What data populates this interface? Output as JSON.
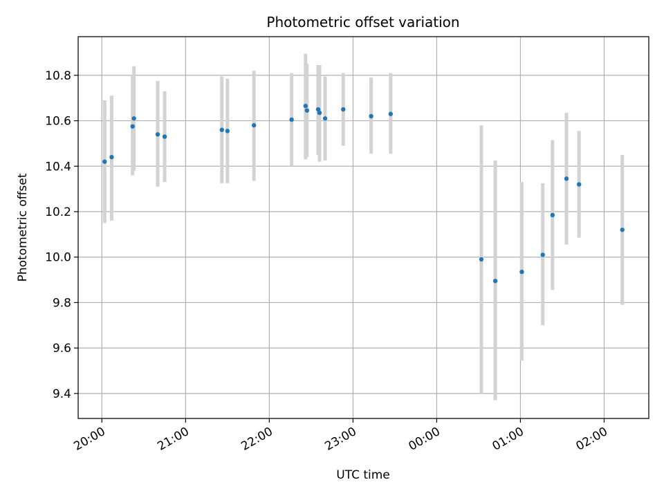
{
  "chart_data": {
    "type": "scatter",
    "title": "Photometric offset variation",
    "xlabel": "UTC time",
    "ylabel": "Photometric offset",
    "x_tick_labels": [
      "20:00",
      "21:00",
      "22:00",
      "23:00",
      "00:00",
      "01:00",
      "02:00"
    ],
    "y_tick_labels": [
      "9.4",
      "9.6",
      "9.8",
      "10.0",
      "10.2",
      "10.4",
      "10.6",
      "10.8"
    ],
    "xlim": [
      "19:43",
      "02:32"
    ],
    "ylim": [
      9.29,
      10.97
    ],
    "grid": true,
    "colors": {
      "points": "#1f77b4",
      "errorbars": "#d3d3d3",
      "grid": "#b0b0b0"
    },
    "points": [
      {
        "t": "20:02",
        "y": 10.42,
        "ylo": 10.15,
        "yhi": 10.69
      },
      {
        "t": "20:07",
        "y": 10.44,
        "ylo": 10.16,
        "yhi": 10.71
      },
      {
        "t": "20:22",
        "y": 10.575,
        "ylo": 10.36,
        "yhi": 10.8
      },
      {
        "t": "20:23",
        "y": 10.61,
        "ylo": 10.38,
        "yhi": 10.84
      },
      {
        "t": "20:40",
        "y": 10.54,
        "ylo": 10.31,
        "yhi": 10.775
      },
      {
        "t": "20:45",
        "y": 10.53,
        "ylo": 10.33,
        "yhi": 10.73
      },
      {
        "t": "21:26",
        "y": 10.56,
        "ylo": 10.325,
        "yhi": 10.795
      },
      {
        "t": "21:30",
        "y": 10.555,
        "ylo": 10.325,
        "yhi": 10.785
      },
      {
        "t": "21:49",
        "y": 10.58,
        "ylo": 10.335,
        "yhi": 10.82
      },
      {
        "t": "22:16",
        "y": 10.605,
        "ylo": 10.4,
        "yhi": 10.81
      },
      {
        "t": "22:26",
        "y": 10.665,
        "ylo": 10.43,
        "yhi": 10.895
      },
      {
        "t": "22:27",
        "y": 10.645,
        "ylo": 10.44,
        "yhi": 10.85
      },
      {
        "t": "22:35",
        "y": 10.65,
        "ylo": 10.45,
        "yhi": 10.845
      },
      {
        "t": "22:36",
        "y": 10.635,
        "ylo": 10.42,
        "yhi": 10.845
      },
      {
        "t": "22:40",
        "y": 10.61,
        "ylo": 10.425,
        "yhi": 10.795
      },
      {
        "t": "22:53",
        "y": 10.65,
        "ylo": 10.49,
        "yhi": 10.81
      },
      {
        "t": "23:13",
        "y": 10.62,
        "ylo": 10.455,
        "yhi": 10.79
      },
      {
        "t": "23:27",
        "y": 10.63,
        "ylo": 10.455,
        "yhi": 10.81
      },
      {
        "t": "00:32",
        "y": 9.99,
        "ylo": 9.4,
        "yhi": 10.58
      },
      {
        "t": "00:42",
        "y": 9.895,
        "ylo": 9.37,
        "yhi": 10.425
      },
      {
        "t": "01:01",
        "y": 9.935,
        "ylo": 9.545,
        "yhi": 10.33
      },
      {
        "t": "01:16",
        "y": 10.01,
        "ylo": 9.7,
        "yhi": 10.325
      },
      {
        "t": "01:23",
        "y": 10.185,
        "ylo": 9.855,
        "yhi": 10.515
      },
      {
        "t": "01:33",
        "y": 10.345,
        "ylo": 10.055,
        "yhi": 10.635
      },
      {
        "t": "01:42",
        "y": 10.32,
        "ylo": 10.085,
        "yhi": 10.555
      },
      {
        "t": "02:13",
        "y": 10.12,
        "ylo": 9.79,
        "yhi": 10.45
      }
    ]
  }
}
